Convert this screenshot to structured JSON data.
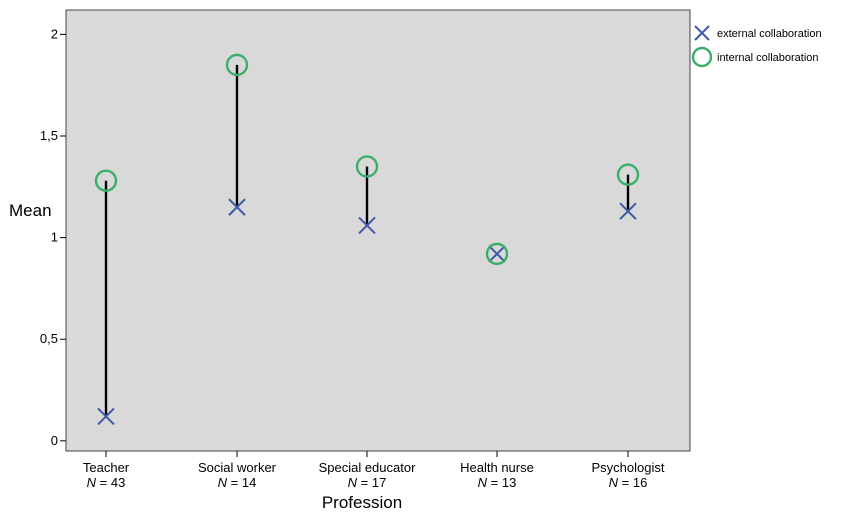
{
  "chart_data": {
    "type": "scatter",
    "ylabel": "Mean",
    "xlabel": "Profession",
    "ylim": [
      -0.05,
      2.12
    ],
    "yticks": [
      {
        "value": 0,
        "label": "0"
      },
      {
        "value": 0.5,
        "label": "0,5"
      },
      {
        "value": 1,
        "label": "1"
      },
      {
        "value": 1.5,
        "label": "1,5"
      },
      {
        "value": 2,
        "label": "2"
      }
    ],
    "categories": [
      {
        "name": "Teacher",
        "n_prefix": "N",
        "n_suffix": " = 43"
      },
      {
        "name": "Social worker",
        "n_prefix": "N",
        "n_suffix": " = 14"
      },
      {
        "name": "Special educator",
        "n_prefix": "N",
        "n_suffix": " = 17"
      },
      {
        "name": "Health nurse",
        "n_prefix": "N",
        "n_suffix": " = 13"
      },
      {
        "name": "Psychologist",
        "n_prefix": "N",
        "n_suffix": " = 16"
      }
    ],
    "series": [
      {
        "name": "external collaboration",
        "marker": "x",
        "color": "#3f5aa8",
        "values": [
          0.12,
          1.15,
          1.06,
          0.92,
          1.13
        ]
      },
      {
        "name": "internal collaboration",
        "marker": "circle",
        "color": "#3aae6a",
        "values": [
          1.28,
          1.85,
          1.35,
          0.92,
          1.31
        ]
      }
    ],
    "connector_color": "#000000",
    "plot_background": "#d9d9d9",
    "grid": false,
    "legend_position": "outside top-right"
  }
}
